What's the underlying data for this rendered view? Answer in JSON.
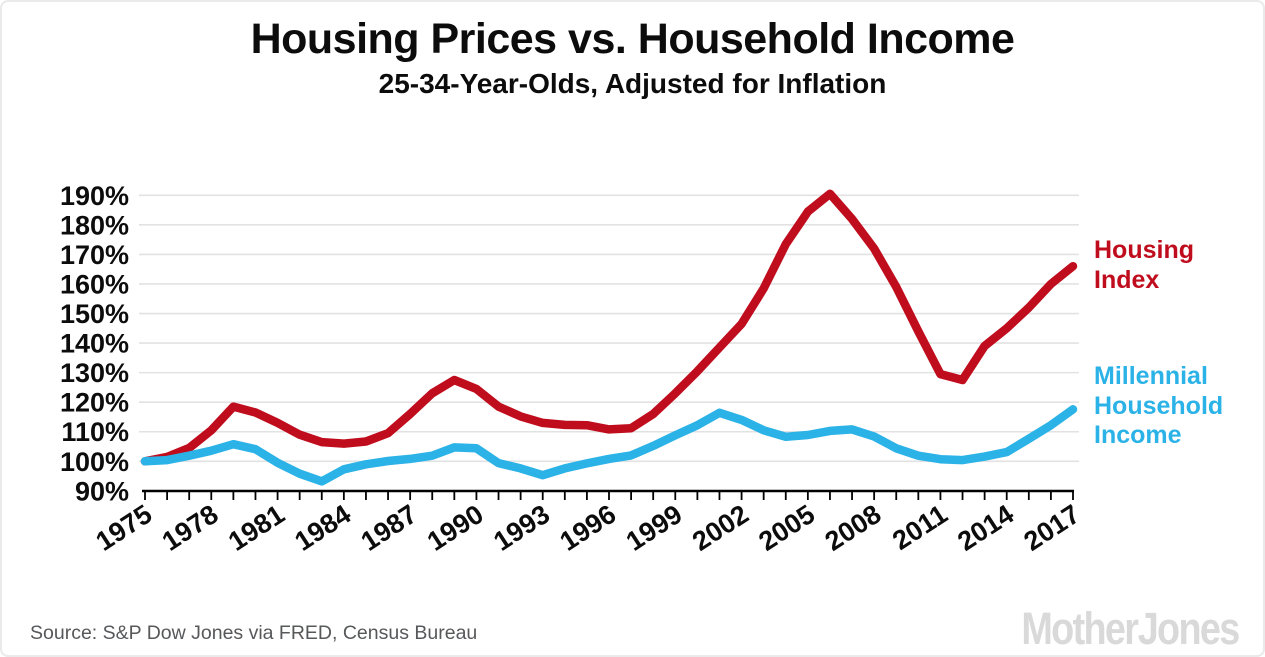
{
  "header": {
    "title": "Housing Prices vs. Household Income",
    "subtitle": "25-34-Year-Olds, Adjusted for Inflation"
  },
  "footer": {
    "source": "Source: S&P Dow Jones via FRED, Census Bureau",
    "logo_text": "Mother Jones"
  },
  "chart_data": {
    "type": "line",
    "title": "Housing Prices vs. Household Income",
    "subtitle": "25-34-Year-Olds, Adjusted for Inflation",
    "xlabel": "",
    "ylabel": "",
    "ylim": [
      90,
      195
    ],
    "y_unit": "%",
    "grid": "horizontal",
    "legend_position": "right",
    "x": [
      1975,
      1976,
      1977,
      1978,
      1979,
      1980,
      1981,
      1982,
      1983,
      1984,
      1985,
      1986,
      1987,
      1988,
      1989,
      1990,
      1991,
      1992,
      1993,
      1994,
      1995,
      1996,
      1997,
      1998,
      1999,
      2000,
      2001,
      2002,
      2003,
      2004,
      2005,
      2006,
      2007,
      2008,
      2009,
      2010,
      2011,
      2012,
      2013,
      2014,
      2015,
      2016,
      2017
    ],
    "x_tick_labels": [
      "1975",
      "1978",
      "1981",
      "1984",
      "1987",
      "1990",
      "1993",
      "1996",
      "1999",
      "2002",
      "2005",
      "2008",
      "2011",
      "2014",
      "2017"
    ],
    "y_tick_labels": [
      "190%",
      "180%",
      "170%",
      "160%",
      "150%",
      "140%",
      "130%",
      "120%",
      "110%",
      "100%",
      "90%"
    ],
    "series": [
      {
        "name": "Housing Index",
        "data_name": "housing-index-line",
        "color": "#c00d1e",
        "values": [
          100,
          101.5,
          104.5,
          110.5,
          118.5,
          116.5,
          113,
          109,
          106.5,
          106,
          106.7,
          109.5,
          116,
          123,
          127.5,
          124.5,
          118.5,
          115.2,
          113,
          112.3,
          112.2,
          110.8,
          111.2,
          116,
          123,
          130.5,
          138.5,
          146.5,
          158.5,
          173.5,
          184.5,
          190.5,
          182,
          172,
          159,
          144,
          129.5,
          127.5,
          139,
          145,
          152,
          160,
          166
        ]
      },
      {
        "name": "Millennial Household Income",
        "data_name": "millennial-income-line",
        "color": "#2bb2e7",
        "values": [
          100,
          100.4,
          101.9,
          103.6,
          105.8,
          104.1,
          99.5,
          95.8,
          93.2,
          97.3,
          99,
          100.1,
          100.8,
          101.9,
          104.7,
          104.4,
          99.4,
          97.6,
          95.3,
          97.6,
          99.3,
          100.8,
          102,
          105.2,
          108.8,
          112.2,
          116.4,
          114,
          110.5,
          108.3,
          108.9,
          110.3,
          110.8,
          108.4,
          104.4,
          101.9,
          100.7,
          100.4,
          101.6,
          103.1,
          107.6,
          112.2,
          117.6
        ]
      }
    ],
    "colors": {
      "grid": "#e2e2e2",
      "axis": "#000000",
      "text": "#0c0c0c",
      "source_text": "#57585a",
      "logo": "#d9d9d9",
      "background": "#ffffff"
    }
  }
}
